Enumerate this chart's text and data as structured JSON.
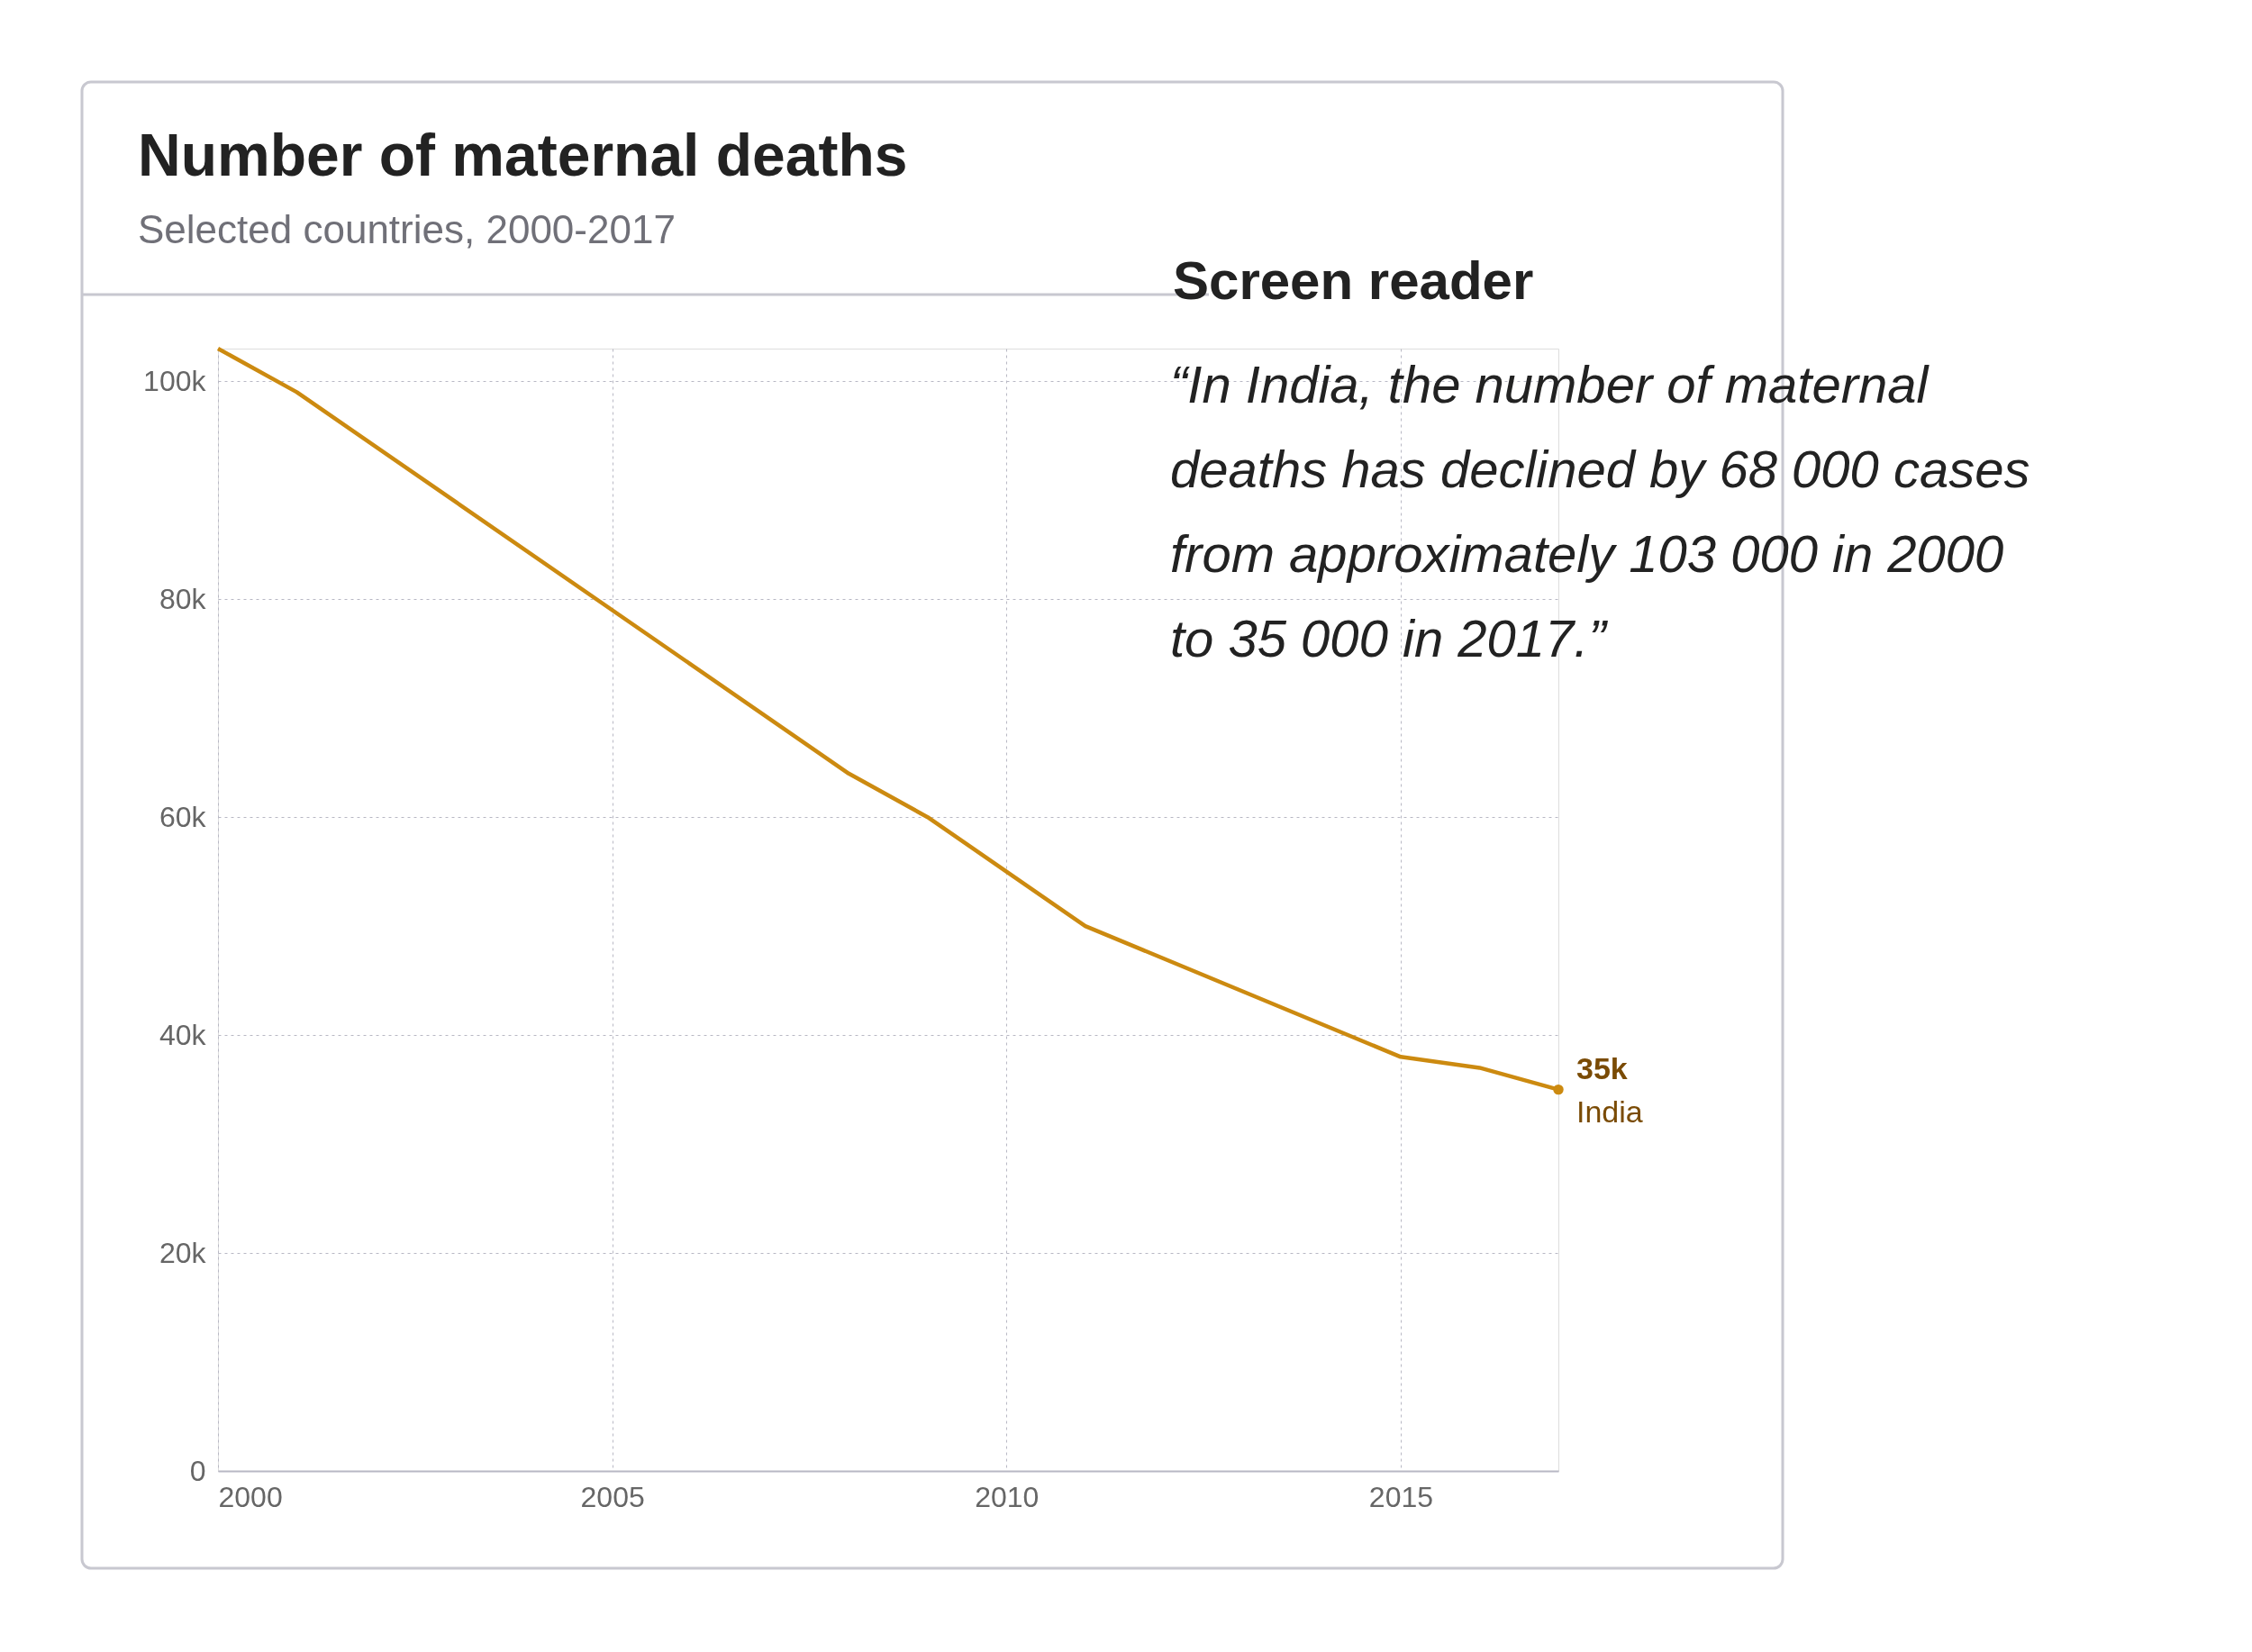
{
  "chart_data": {
    "type": "line",
    "title": "Number of maternal deaths",
    "subtitle": "Selected countries, 2000-2017",
    "x": [
      2000,
      2001,
      2008,
      2009,
      2011,
      2015,
      2016,
      2017
    ],
    "series": [
      {
        "name": "India",
        "color": "#cc8a10",
        "values": [
          103000,
          99000,
          64000,
          60000,
          50000,
          38000,
          37000,
          35000
        ],
        "value_labels": [
          null,
          null,
          null,
          null,
          null,
          null,
          null,
          "35k"
        ]
      }
    ],
    "xlim": [
      2000,
      2017
    ],
    "ylim": [
      0,
      103000
    ],
    "xticks": [
      2000,
      2005,
      2010,
      2015
    ],
    "yticks": [
      0,
      {
        "value": 20000,
        "label": "20k"
      },
      {
        "value": 40000,
        "label": "40k"
      },
      {
        "value": 60000,
        "label": "60k"
      },
      {
        "value": 80000,
        "label": "80k"
      },
      {
        "value": 100000,
        "label": "100k"
      }
    ],
    "grid": true,
    "legend": false,
    "marker": "none",
    "line_style": "solid",
    "annotations": [
      "Screen reader",
      "“In India, the number of maternal deaths has declined by 68 000 cases from approximately 103 000 in 2000 to 35 000 in 2017.”"
    ]
  }
}
